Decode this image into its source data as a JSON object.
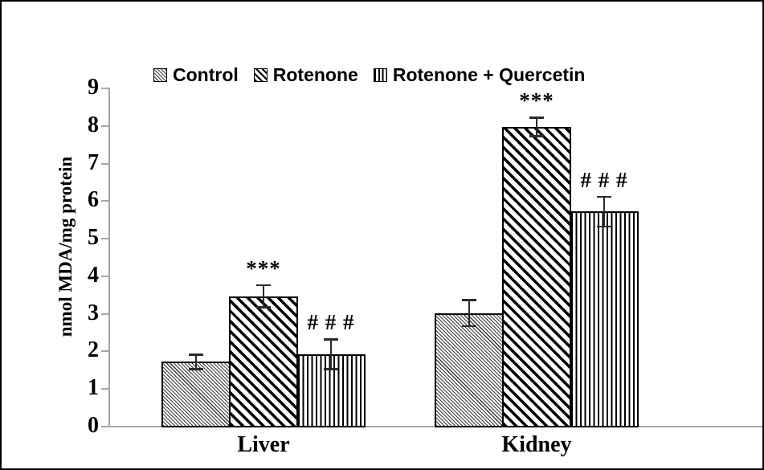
{
  "chart_data": {
    "type": "bar",
    "title": "",
    "ylabel": "nmol MDA/mg protein",
    "xlabel": "",
    "ylim": [
      0,
      9
    ],
    "yticks": [
      0,
      1,
      2,
      3,
      4,
      5,
      6,
      7,
      8,
      9
    ],
    "grid": false,
    "legend_position": "top-center",
    "axis_color": "#a6a6a6",
    "bar_fill": "#ffffff",
    "bar_border_color": "#000000",
    "error_bar_color": "#2b2b2b",
    "categories": [
      "Liver",
      "Kidney"
    ],
    "series": [
      {
        "name": "Control",
        "pattern": "fine-diagonal-hatch",
        "values": [
          1.7,
          3.0
        ],
        "errors": [
          0.2,
          0.35
        ],
        "sig": [
          "",
          ""
        ]
      },
      {
        "name": "Rotenone",
        "pattern": "bold-diagonal-hatch",
        "values": [
          3.45,
          7.95
        ],
        "errors": [
          0.3,
          0.25
        ],
        "sig": [
          "***",
          "***"
        ]
      },
      {
        "name": "Rotenone + Quercetin",
        "pattern": "vertical-lines-hatch",
        "values": [
          1.9,
          5.7
        ],
        "errors": [
          0.4,
          0.4
        ],
        "sig": [
          "# # #",
          "# # #"
        ]
      }
    ]
  }
}
